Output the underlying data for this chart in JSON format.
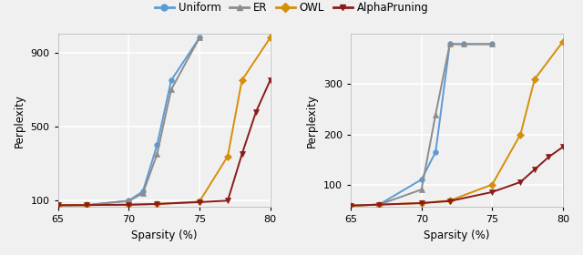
{
  "left": {
    "xlabel": "Sparsity (%)",
    "ylabel": "Perplexity",
    "xlim": [
      65,
      80
    ],
    "ylim": [
      65,
      1000
    ],
    "yticks": [
      100,
      500,
      900
    ],
    "xticks": [
      65,
      70,
      75,
      80
    ],
    "series": [
      {
        "label": "Uniform",
        "color": "#5b9bd5",
        "marker": "o",
        "x": [
          65,
          67,
          70,
          71,
          72,
          73,
          75
        ],
        "y": [
          75,
          76,
          100,
          150,
          400,
          750,
          980
        ]
      },
      {
        "label": "ER",
        "color": "#8c8c8c",
        "marker": "^",
        "x": [
          65,
          67,
          70,
          71,
          72,
          73,
          75
        ],
        "y": [
          75,
          76,
          98,
          140,
          350,
          700,
          980
        ]
      },
      {
        "label": "OWL",
        "color": "#d4900a",
        "marker": "D",
        "x": [
          65,
          67,
          70,
          72,
          75,
          77,
          78,
          80
        ],
        "y": [
          75,
          76,
          78,
          82,
          95,
          340,
          750,
          980
        ]
      },
      {
        "label": "AlphaPruning",
        "color": "#8b1a1a",
        "marker": "v",
        "x": [
          65,
          67,
          70,
          72,
          75,
          77,
          78,
          79,
          80
        ],
        "y": [
          75,
          76,
          78,
          82,
          92,
          100,
          350,
          580,
          750
        ]
      }
    ]
  },
  "right": {
    "xlabel": "Sparsity (%)",
    "ylabel": "Perplexity",
    "xlim": [
      65,
      80
    ],
    "ylim": [
      55,
      400
    ],
    "yticks": [
      100,
      200,
      300
    ],
    "xticks": [
      65,
      70,
      75,
      80
    ],
    "series": [
      {
        "label": "Uniform",
        "color": "#5b9bd5",
        "marker": "o",
        "x": [
          65,
          67,
          70,
          71,
          72,
          73,
          75
        ],
        "y": [
          58,
          60,
          110,
          165,
          380,
          380,
          380
        ]
      },
      {
        "label": "ER",
        "color": "#8c8c8c",
        "marker": "^",
        "x": [
          65,
          67,
          70,
          71,
          72,
          73,
          75
        ],
        "y": [
          58,
          60,
          90,
          240,
          380,
          380,
          380
        ]
      },
      {
        "label": "OWL",
        "color": "#d4900a",
        "marker": "D",
        "x": [
          65,
          67,
          70,
          72,
          75,
          77,
          78,
          80
        ],
        "y": [
          58,
          60,
          63,
          68,
          100,
          200,
          310,
          385
        ]
      },
      {
        "label": "AlphaPruning",
        "color": "#8b1a1a",
        "marker": "v",
        "x": [
          65,
          67,
          70,
          72,
          75,
          77,
          78,
          79,
          80
        ],
        "y": [
          58,
          60,
          63,
          67,
          85,
          105,
          130,
          155,
          175
        ]
      }
    ]
  },
  "legend_labels": [
    "Uniform",
    "ER",
    "OWL",
    "AlphaPruning"
  ],
  "legend_colors": [
    "#5b9bd5",
    "#8c8c8c",
    "#d4900a",
    "#8b1a1a"
  ],
  "legend_markers": [
    "o",
    "^",
    "D",
    "v"
  ],
  "background_color": "#f0f0f0",
  "grid_color": "#ffffff"
}
